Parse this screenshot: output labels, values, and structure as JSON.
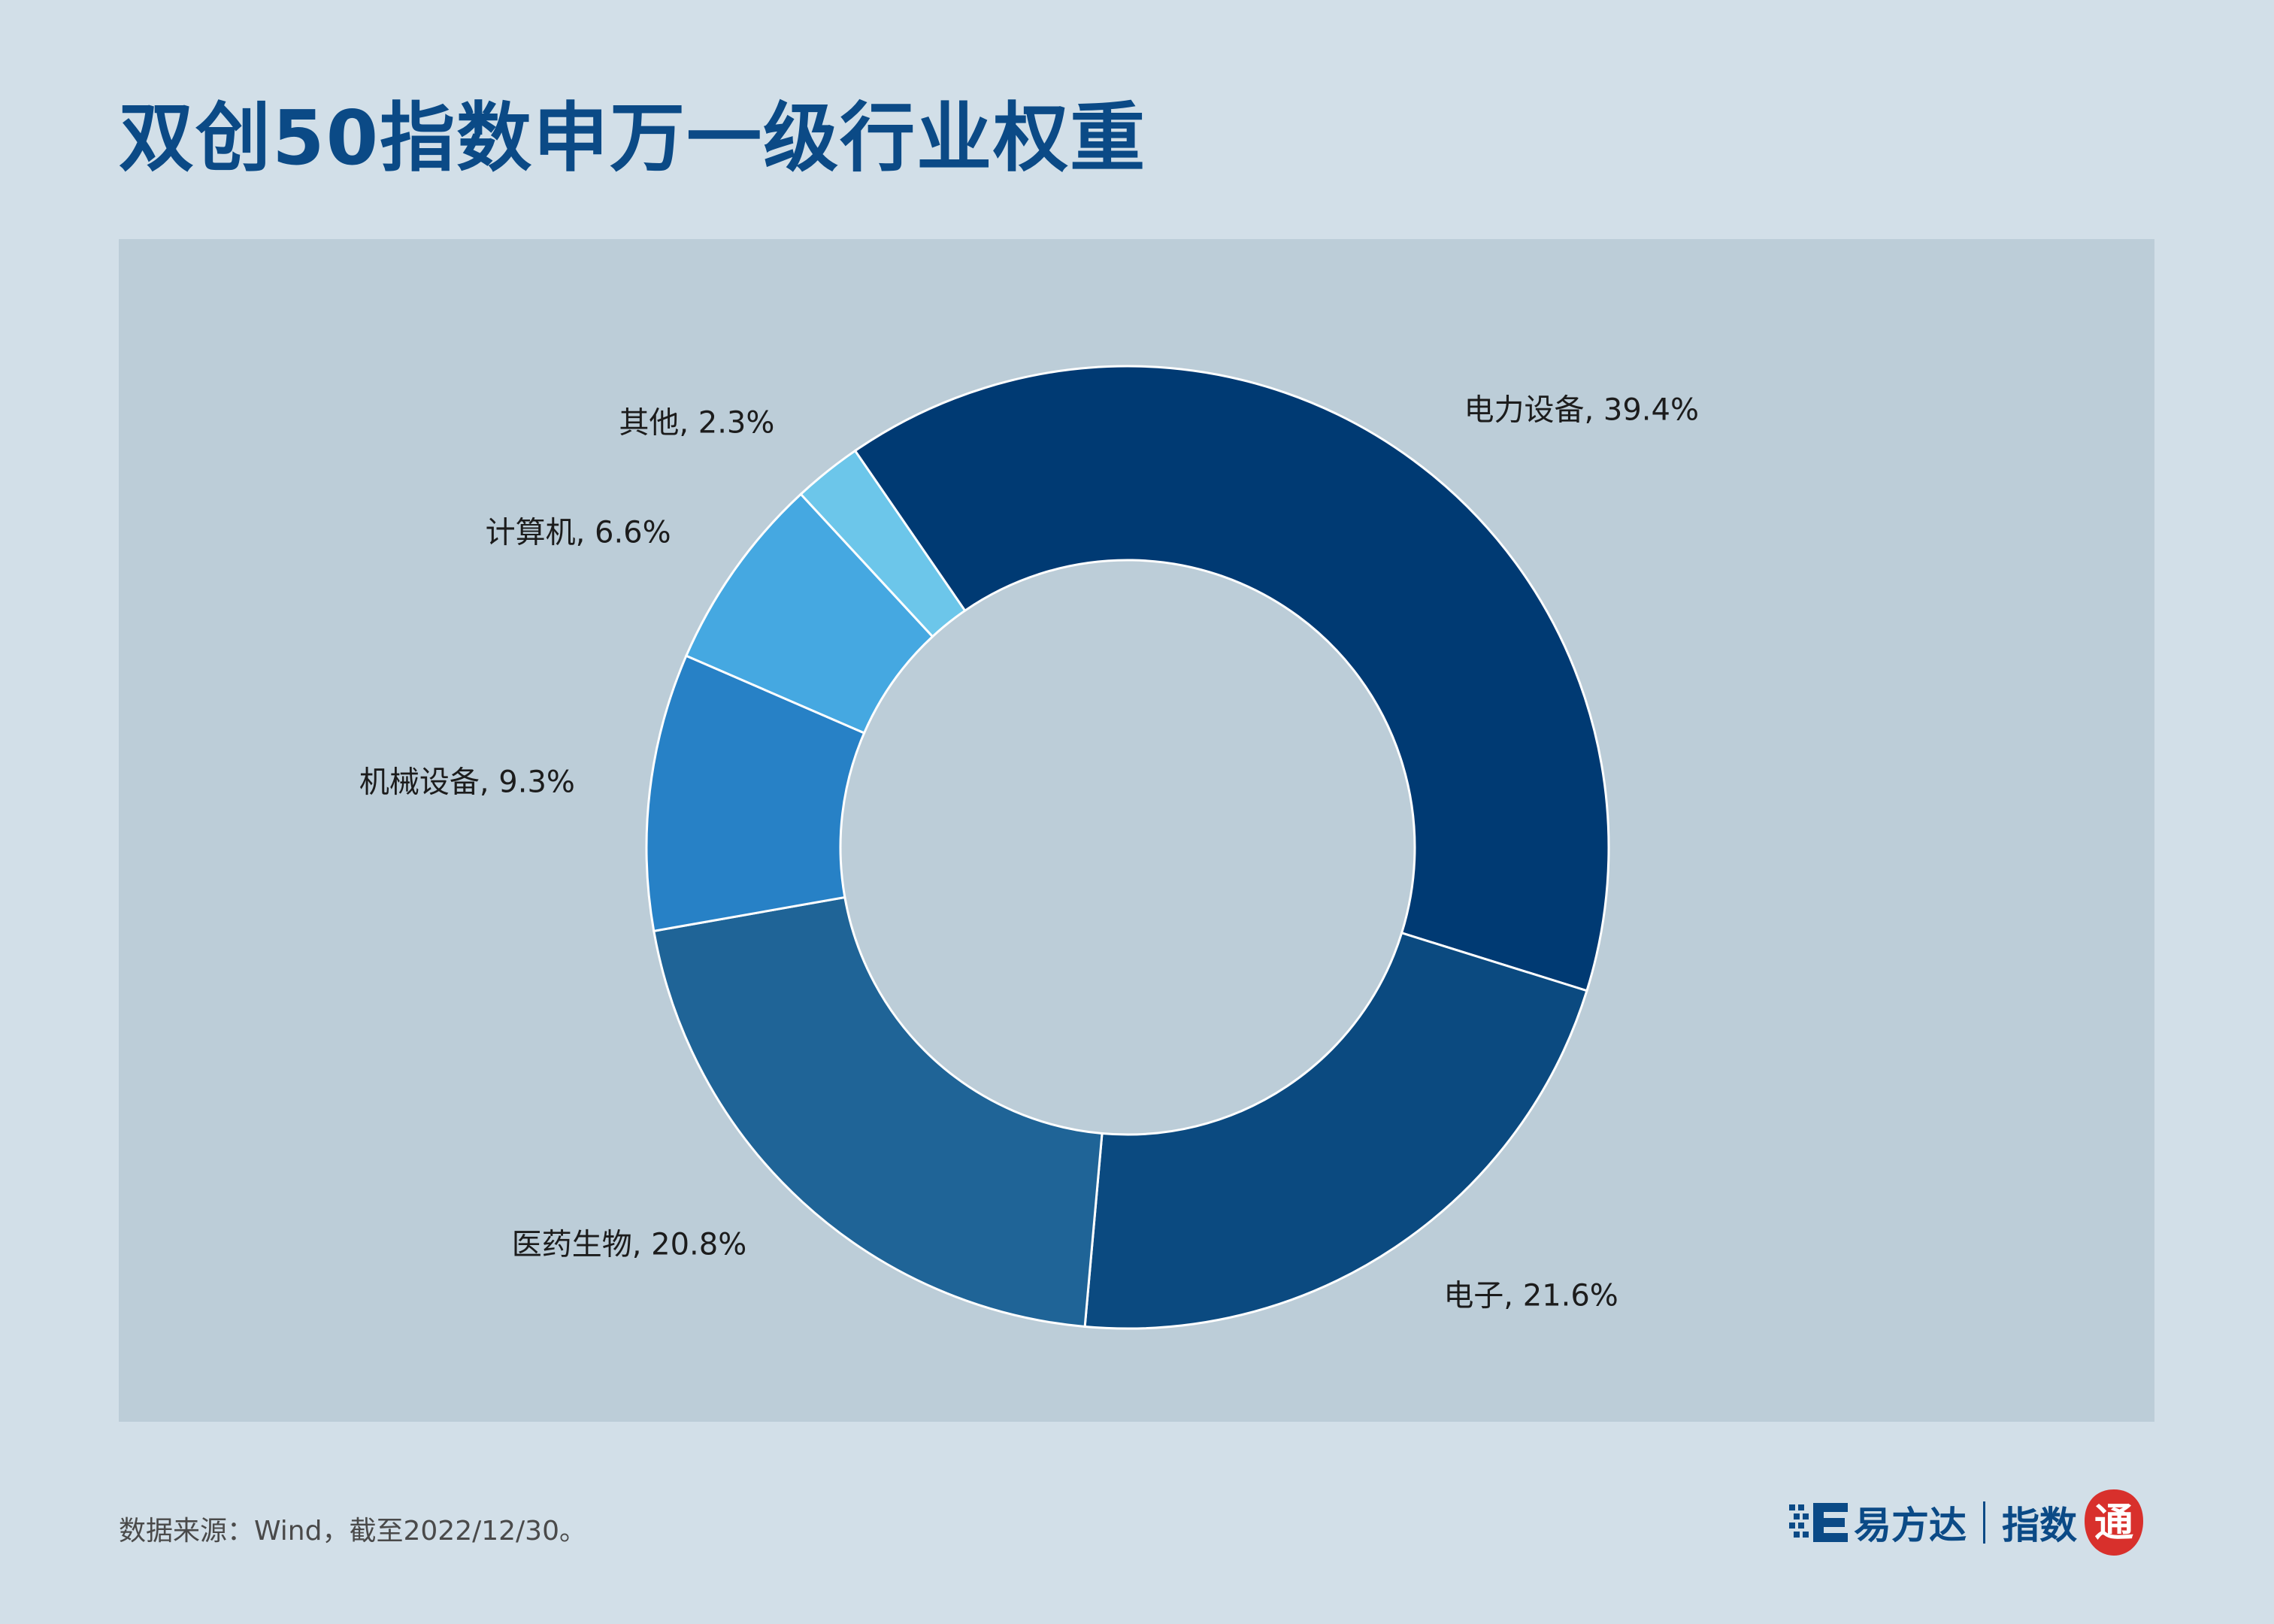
{
  "title": "双创50指数申万一级行业权重",
  "footer": {
    "source": "数据来源：Wind，截至2022/12/30。"
  },
  "brand": {
    "company": "易方达",
    "product": "指数",
    "seal_char": "通"
  },
  "colors": {
    "background": "#d2dfe8",
    "panel": "#bccdd8",
    "title": "#0b4a86",
    "slices": [
      "#003a73",
      "#0b4a80",
      "#1f6497",
      "#2781c6",
      "#45a8e1",
      "#6cc6ea"
    ]
  },
  "chart_data": {
    "type": "donut",
    "title": "双创50指数申万一级行业权重",
    "unit": "%",
    "slices": [
      {
        "name": "电力设备",
        "value": 39.4,
        "label": "电力设备, 39.4%"
      },
      {
        "name": "电子",
        "value": 21.6,
        "label": "电子, 21.6%"
      },
      {
        "name": "医药生物",
        "value": 20.8,
        "label": "医药生物, 20.8%"
      },
      {
        "name": "机械设备",
        "value": 9.3,
        "label": "机械设备, 9.3%"
      },
      {
        "name": "计算机",
        "value": 6.6,
        "label": "计算机, 6.6%"
      },
      {
        "name": "其他",
        "value": 2.3,
        "label": "其他, 2.3%"
      }
    ]
  }
}
